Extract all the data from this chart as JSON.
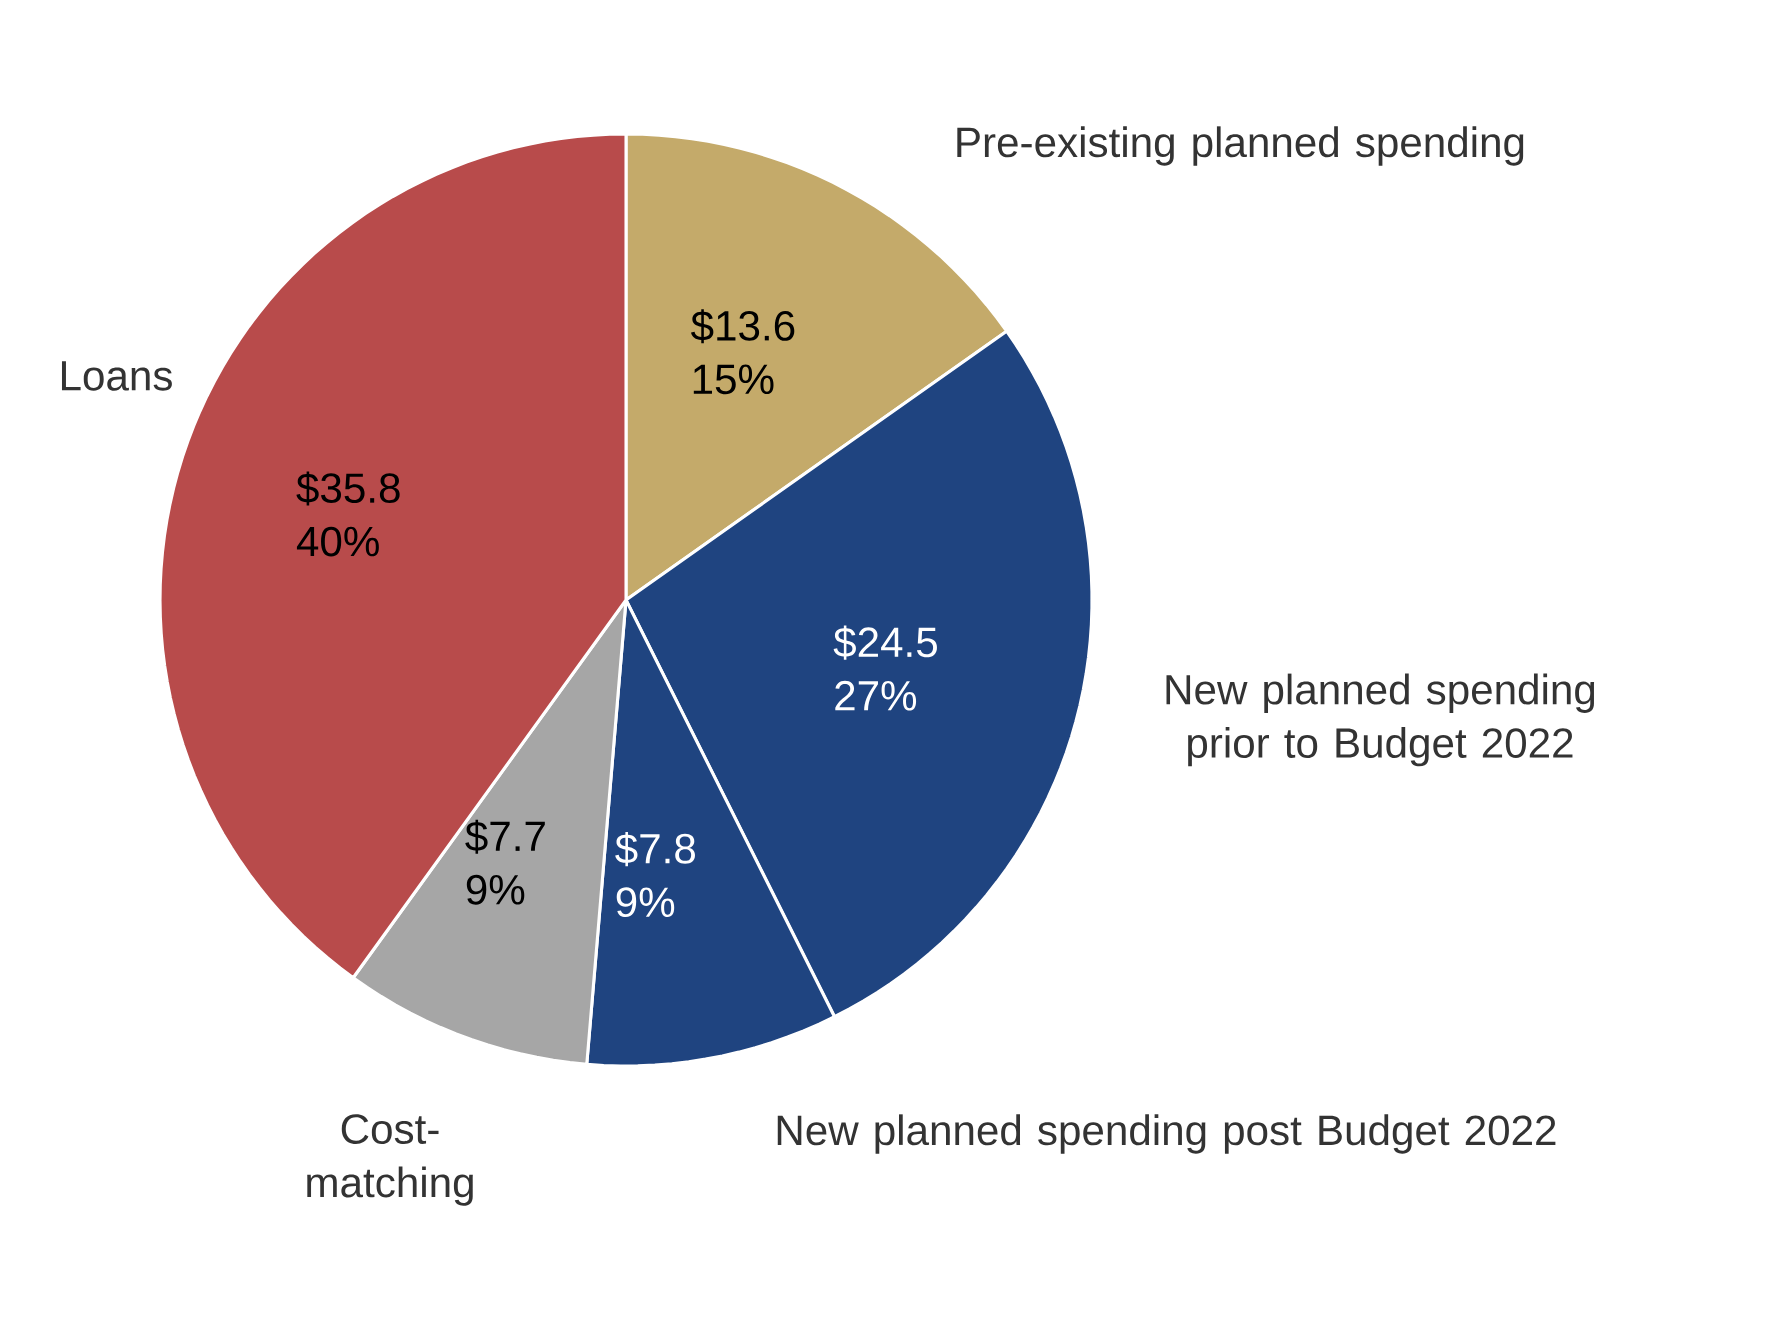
{
  "chart_data": {
    "type": "pie",
    "categories": [
      "Pre-existing planned spending",
      "New planned spending prior to Budget 2022",
      "New planned spending post Budget 2022",
      "Cost-matching",
      "Loans"
    ],
    "values": [
      13.6,
      24.5,
      7.8,
      7.7,
      35.8
    ],
    "colors": [
      "#c4aa6a",
      "#1f4480",
      "#1f4480",
      "#a6a6a6",
      "#b84b4b"
    ],
    "value_labels": [
      "$13.6 15%",
      "$24.5 27%",
      "$7.8 9%",
      "$7.7 9%",
      "$35.8 40%"
    ]
  }
}
